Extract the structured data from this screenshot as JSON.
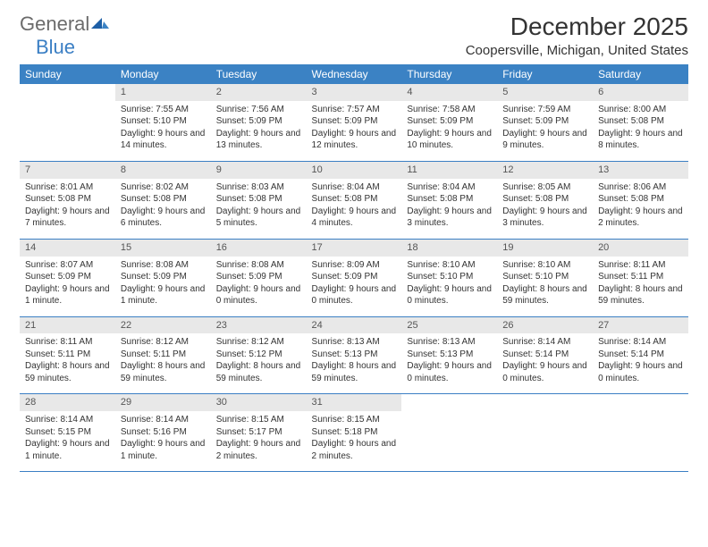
{
  "logo": {
    "word1": "General",
    "word2": "Blue"
  },
  "title": "December 2025",
  "location": "Coopersville, Michigan, United States",
  "colors": {
    "header_bg": "#3b82c4",
    "header_text": "#ffffff",
    "daynum_bg": "#e8e8e8",
    "border": "#3b7fc4",
    "logo_gray": "#6b6b6b",
    "logo_blue": "#3b7fc4",
    "text": "#333333"
  },
  "weekdays": [
    "Sunday",
    "Monday",
    "Tuesday",
    "Wednesday",
    "Thursday",
    "Friday",
    "Saturday"
  ],
  "weeks": [
    [
      null,
      {
        "n": "1",
        "sr": "7:55 AM",
        "ss": "5:10 PM",
        "dl": "9 hours and 14 minutes."
      },
      {
        "n": "2",
        "sr": "7:56 AM",
        "ss": "5:09 PM",
        "dl": "9 hours and 13 minutes."
      },
      {
        "n": "3",
        "sr": "7:57 AM",
        "ss": "5:09 PM",
        "dl": "9 hours and 12 minutes."
      },
      {
        "n": "4",
        "sr": "7:58 AM",
        "ss": "5:09 PM",
        "dl": "9 hours and 10 minutes."
      },
      {
        "n": "5",
        "sr": "7:59 AM",
        "ss": "5:09 PM",
        "dl": "9 hours and 9 minutes."
      },
      {
        "n": "6",
        "sr": "8:00 AM",
        "ss": "5:08 PM",
        "dl": "9 hours and 8 minutes."
      }
    ],
    [
      {
        "n": "7",
        "sr": "8:01 AM",
        "ss": "5:08 PM",
        "dl": "9 hours and 7 minutes."
      },
      {
        "n": "8",
        "sr": "8:02 AM",
        "ss": "5:08 PM",
        "dl": "9 hours and 6 minutes."
      },
      {
        "n": "9",
        "sr": "8:03 AM",
        "ss": "5:08 PM",
        "dl": "9 hours and 5 minutes."
      },
      {
        "n": "10",
        "sr": "8:04 AM",
        "ss": "5:08 PM",
        "dl": "9 hours and 4 minutes."
      },
      {
        "n": "11",
        "sr": "8:04 AM",
        "ss": "5:08 PM",
        "dl": "9 hours and 3 minutes."
      },
      {
        "n": "12",
        "sr": "8:05 AM",
        "ss": "5:08 PM",
        "dl": "9 hours and 3 minutes."
      },
      {
        "n": "13",
        "sr": "8:06 AM",
        "ss": "5:08 PM",
        "dl": "9 hours and 2 minutes."
      }
    ],
    [
      {
        "n": "14",
        "sr": "8:07 AM",
        "ss": "5:09 PM",
        "dl": "9 hours and 1 minute."
      },
      {
        "n": "15",
        "sr": "8:08 AM",
        "ss": "5:09 PM",
        "dl": "9 hours and 1 minute."
      },
      {
        "n": "16",
        "sr": "8:08 AM",
        "ss": "5:09 PM",
        "dl": "9 hours and 0 minutes."
      },
      {
        "n": "17",
        "sr": "8:09 AM",
        "ss": "5:09 PM",
        "dl": "9 hours and 0 minutes."
      },
      {
        "n": "18",
        "sr": "8:10 AM",
        "ss": "5:10 PM",
        "dl": "9 hours and 0 minutes."
      },
      {
        "n": "19",
        "sr": "8:10 AM",
        "ss": "5:10 PM",
        "dl": "8 hours and 59 minutes."
      },
      {
        "n": "20",
        "sr": "8:11 AM",
        "ss": "5:11 PM",
        "dl": "8 hours and 59 minutes."
      }
    ],
    [
      {
        "n": "21",
        "sr": "8:11 AM",
        "ss": "5:11 PM",
        "dl": "8 hours and 59 minutes."
      },
      {
        "n": "22",
        "sr": "8:12 AM",
        "ss": "5:11 PM",
        "dl": "8 hours and 59 minutes."
      },
      {
        "n": "23",
        "sr": "8:12 AM",
        "ss": "5:12 PM",
        "dl": "8 hours and 59 minutes."
      },
      {
        "n": "24",
        "sr": "8:13 AM",
        "ss": "5:13 PM",
        "dl": "8 hours and 59 minutes."
      },
      {
        "n": "25",
        "sr": "8:13 AM",
        "ss": "5:13 PM",
        "dl": "9 hours and 0 minutes."
      },
      {
        "n": "26",
        "sr": "8:14 AM",
        "ss": "5:14 PM",
        "dl": "9 hours and 0 minutes."
      },
      {
        "n": "27",
        "sr": "8:14 AM",
        "ss": "5:14 PM",
        "dl": "9 hours and 0 minutes."
      }
    ],
    [
      {
        "n": "28",
        "sr": "8:14 AM",
        "ss": "5:15 PM",
        "dl": "9 hours and 1 minute."
      },
      {
        "n": "29",
        "sr": "8:14 AM",
        "ss": "5:16 PM",
        "dl": "9 hours and 1 minute."
      },
      {
        "n": "30",
        "sr": "8:15 AM",
        "ss": "5:17 PM",
        "dl": "9 hours and 2 minutes."
      },
      {
        "n": "31",
        "sr": "8:15 AM",
        "ss": "5:18 PM",
        "dl": "9 hours and 2 minutes."
      },
      null,
      null,
      null
    ]
  ]
}
